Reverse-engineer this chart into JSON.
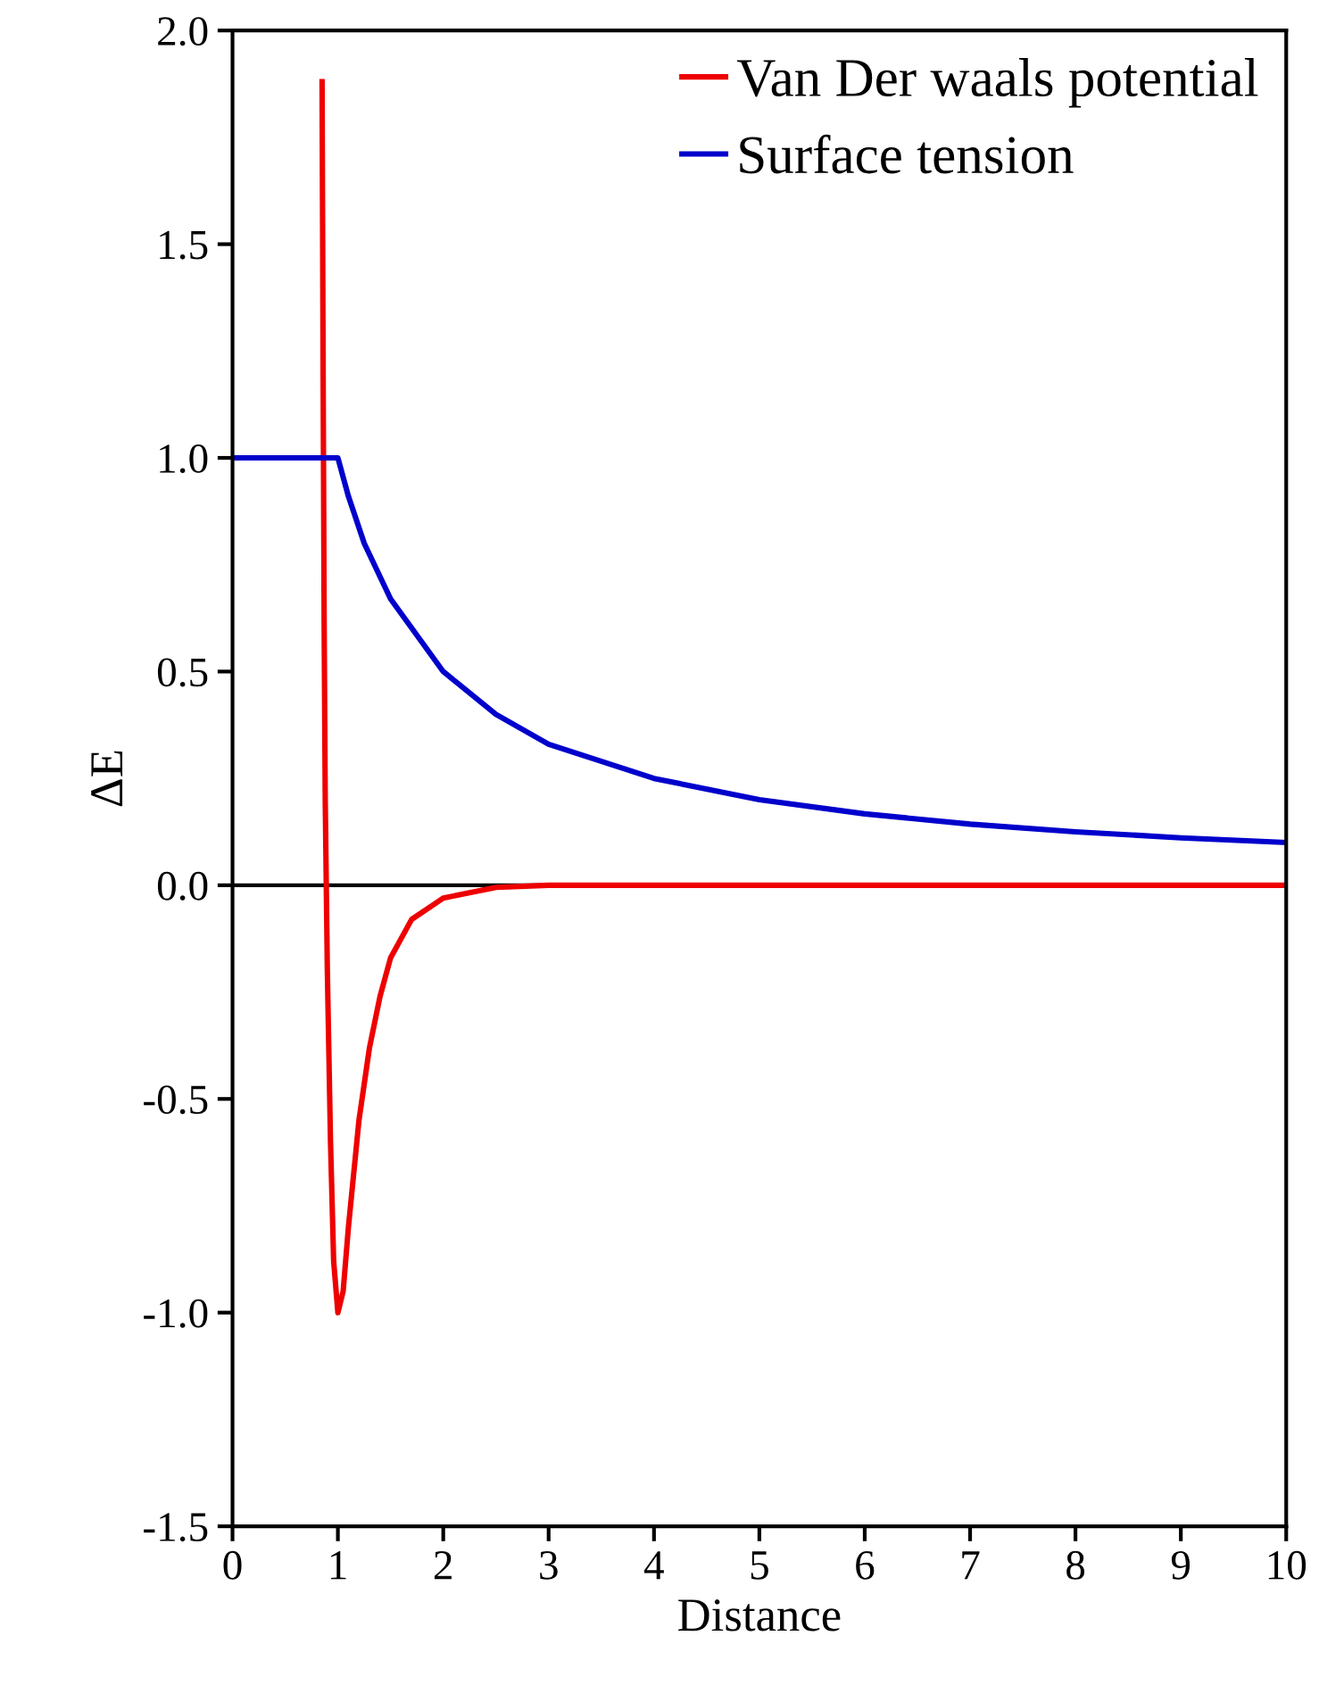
{
  "chart_data": {
    "type": "line",
    "xlabel": "Distance",
    "ylabel": "ΔE",
    "series": [
      {
        "name": "Van Der waals potential",
        "color": "#ee0000",
        "x": [
          0.85,
          0.86,
          0.87,
          0.88,
          0.9,
          0.93,
          0.96,
          1.0,
          1.05,
          1.1,
          1.2,
          1.3,
          1.4,
          1.5,
          1.7,
          2.0,
          2.5,
          3.0,
          10.0
        ],
        "values": [
          1.88,
          1.2,
          0.6,
          0.2,
          -0.2,
          -0.6,
          -0.88,
          -1.0,
          -0.95,
          -0.8,
          -0.55,
          -0.38,
          -0.26,
          -0.17,
          -0.08,
          -0.03,
          -0.005,
          0.0,
          0.0
        ]
      },
      {
        "name": "Surface tension",
        "color": "#0000cc",
        "x": [
          0,
          1.0,
          1.1,
          1.25,
          1.5,
          2,
          2.5,
          3,
          4,
          5,
          6,
          7,
          8,
          9,
          10
        ],
        "values": [
          1.0,
          1.0,
          0.91,
          0.8,
          0.67,
          0.5,
          0.4,
          0.33,
          0.25,
          0.2,
          0.167,
          0.143,
          0.125,
          0.111,
          0.1
        ]
      }
    ],
    "xlim": [
      0,
      10
    ],
    "xticks": [
      0,
      1,
      2,
      3,
      4,
      5,
      6,
      7,
      8,
      9,
      10
    ],
    "ylim": [
      -1.5,
      2.0
    ],
    "yticks": [
      {
        "value": -1.5,
        "label": "-1.5"
      },
      {
        "value": -1.0,
        "label": "-1.0"
      },
      {
        "value": -0.5,
        "label": "-0.5"
      },
      {
        "value": 0,
        "label": "0.0"
      },
      {
        "value": 0.5,
        "label": "0.5"
      },
      {
        "value": 1.0,
        "label": "1.0"
      },
      {
        "value": 1.5,
        "label": "1.5"
      },
      {
        "value": 2.0,
        "label": "2.0"
      }
    ],
    "ref_lines": [
      {
        "axis": "y",
        "value": 0,
        "color": "#000000"
      }
    ],
    "legend": "top right",
    "grid": false
  }
}
